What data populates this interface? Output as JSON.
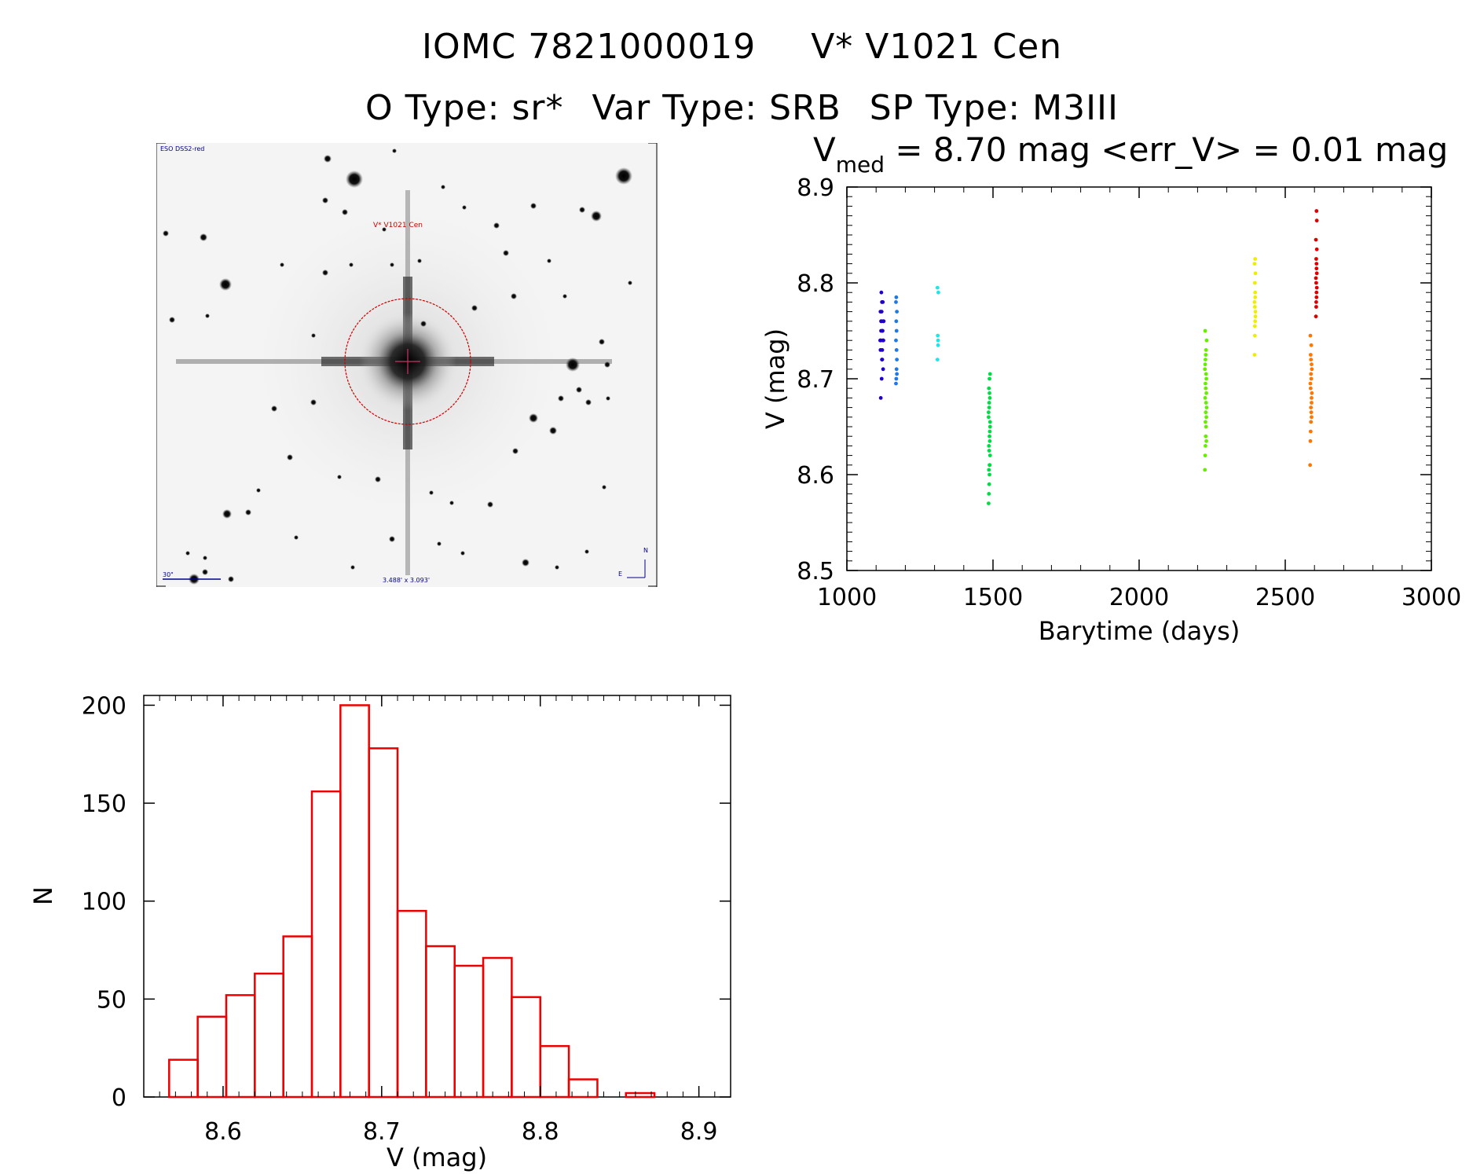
{
  "header": {
    "iomc": "IOMC 7821000019",
    "star": "V* V1021 Cen",
    "otype": "O Type: sr*",
    "vartype": "Var Type: SRB",
    "sptype": "SP Type: M3III"
  },
  "finder": {
    "survey_label": "ESO DSS2-red",
    "target_label": "V* V1021 Cen",
    "scale_label": "30\"",
    "fov_label": "3.488' x 3.093'",
    "north_label": "N",
    "east_label": "E",
    "colors": {
      "target": "#cc0000",
      "annotation": "#00008b"
    }
  },
  "chart_data": [
    {
      "type": "scatter",
      "title_prefix": "V",
      "title_subscript": "med",
      "title_rest": " = 8.70 mag <err_V> = 0.01 mag",
      "xlabel": "Barytime (days)",
      "ylabel": "V (mag)",
      "xlim": [
        1000,
        3000
      ],
      "ylim": [
        8.9,
        8.5
      ],
      "y_inverted": true,
      "xticks": [
        1000,
        1500,
        2000,
        2500,
        3000
      ],
      "yticks": [
        8.5,
        8.6,
        8.7,
        8.8,
        8.9
      ],
      "xtick_labels": [
        "1000",
        "1500",
        "2000",
        "2500",
        "3000"
      ],
      "ytick_labels": [
        "8.5",
        "8.6",
        "8.7",
        "8.8",
        "8.9"
      ],
      "grid": false,
      "series": [
        {
          "color": "#2200cc",
          "x": [
            1115,
            1116,
            1117,
            1118,
            1119,
            1120,
            1121,
            1122,
            1123,
            1124,
            1115,
            1118,
            1121,
            1124,
            1116,
            1119,
            1122,
            1125,
            1117,
            1120,
            1123,
            1114,
            1126
          ],
          "y": [
            8.73,
            8.74,
            8.75,
            8.76,
            8.77,
            8.78,
            8.72,
            8.75,
            8.74,
            8.76,
            8.77,
            8.79,
            8.73,
            8.71,
            8.68,
            8.7,
            8.75,
            8.74,
            8.76,
            8.72,
            8.78,
            8.74,
            8.76
          ]
        },
        {
          "color": "#1e78e6",
          "x": [
            1168,
            1169,
            1170,
            1171,
            1168,
            1170,
            1169,
            1171,
            1168,
            1170,
            1169,
            1171
          ],
          "y": [
            8.695,
            8.7,
            8.71,
            8.72,
            8.74,
            8.75,
            8.76,
            8.77,
            8.78,
            8.73,
            8.785,
            8.705
          ]
        },
        {
          "color": "#1ee6e6",
          "x": [
            1310,
            1312,
            1311,
            1313,
            1310,
            1312
          ],
          "y": [
            8.72,
            8.74,
            8.745,
            8.79,
            8.795,
            8.735
          ]
        },
        {
          "color": "#00dd44",
          "x": [
            1485,
            1486,
            1487,
            1488,
            1489,
            1490,
            1486,
            1488,
            1490,
            1485,
            1487,
            1489,
            1486,
            1488,
            1490,
            1487,
            1489,
            1485,
            1488,
            1486,
            1490,
            1487,
            1489,
            1488
          ],
          "y": [
            8.57,
            8.58,
            8.59,
            8.6,
            8.61,
            8.62,
            8.63,
            8.64,
            8.65,
            8.66,
            8.67,
            8.68,
            8.69,
            8.7,
            8.705,
            8.625,
            8.645,
            8.665,
            8.685,
            8.605,
            8.655,
            8.675,
            8.635,
            8.61
          ]
        },
        {
          "color": "#66ee00",
          "x": [
            2225,
            2226,
            2227,
            2228,
            2229,
            2230,
            2231,
            2226,
            2228,
            2230,
            2225,
            2227,
            2229,
            2231,
            2226,
            2228,
            2230,
            2227,
            2229,
            2226,
            2228,
            2230,
            2227,
            2229
          ],
          "y": [
            8.605,
            8.62,
            8.63,
            8.64,
            8.65,
            8.66,
            8.67,
            8.68,
            8.69,
            8.7,
            8.71,
            8.72,
            8.73,
            8.74,
            8.75,
            8.665,
            8.685,
            8.695,
            8.705,
            8.715,
            8.725,
            8.635,
            8.655,
            8.675
          ]
        },
        {
          "color": "#eeee00",
          "x": [
            2395,
            2396,
            2397,
            2398,
            2395,
            2397,
            2396,
            2398,
            2395,
            2397,
            2396,
            2398,
            2397,
            2396
          ],
          "y": [
            8.725,
            8.745,
            8.76,
            8.77,
            8.78,
            8.79,
            8.8,
            8.81,
            8.82,
            8.825,
            8.775,
            8.765,
            8.785,
            8.755
          ]
        },
        {
          "color": "#ff7700",
          "x": [
            2585,
            2586,
            2587,
            2588,
            2589,
            2590,
            2591,
            2586,
            2588,
            2590,
            2587,
            2589,
            2586,
            2588,
            2590,
            2587,
            2589,
            2591,
            2588,
            2590
          ],
          "y": [
            8.61,
            8.635,
            8.645,
            8.655,
            8.665,
            8.675,
            8.685,
            8.695,
            8.705,
            8.715,
            8.725,
            8.735,
            8.745,
            8.67,
            8.68,
            8.69,
            8.7,
            8.71,
            8.72,
            8.66
          ]
        },
        {
          "color": "#dd0000",
          "x": [
            2605,
            2606,
            2607,
            2608,
            2605,
            2607,
            2606,
            2608,
            2605,
            2607,
            2606,
            2608,
            2607,
            2606,
            2608,
            2607
          ],
          "y": [
            8.765,
            8.775,
            8.785,
            8.795,
            8.805,
            8.815,
            8.825,
            8.835,
            8.845,
            8.79,
            8.8,
            8.81,
            8.82,
            8.78,
            8.865,
            8.875
          ]
        }
      ]
    },
    {
      "type": "bar",
      "xlabel": "V (mag)",
      "ylabel": "N",
      "xlim": [
        8.55,
        8.92
      ],
      "ylim": [
        0,
        205
      ],
      "xticks": [
        8.6,
        8.7,
        8.8,
        8.9
      ],
      "yticks": [
        0,
        50,
        100,
        150,
        200
      ],
      "xtick_labels": [
        "8.6",
        "8.7",
        "8.8",
        "8.9"
      ],
      "ytick_labels": [
        "0",
        "50",
        "100",
        "150",
        "200"
      ],
      "bin_edges": [
        8.566,
        8.584,
        8.602,
        8.62,
        8.638,
        8.656,
        8.674,
        8.692,
        8.71,
        8.728,
        8.746,
        8.764,
        8.782,
        8.8,
        8.818,
        8.836,
        8.854,
        8.872,
        8.89
      ],
      "values": [
        19,
        41,
        52,
        63,
        82,
        156,
        200,
        178,
        95,
        77,
        67,
        71,
        51,
        26,
        9,
        0,
        2,
        0
      ],
      "color": "#ee0000",
      "grid": false
    }
  ]
}
